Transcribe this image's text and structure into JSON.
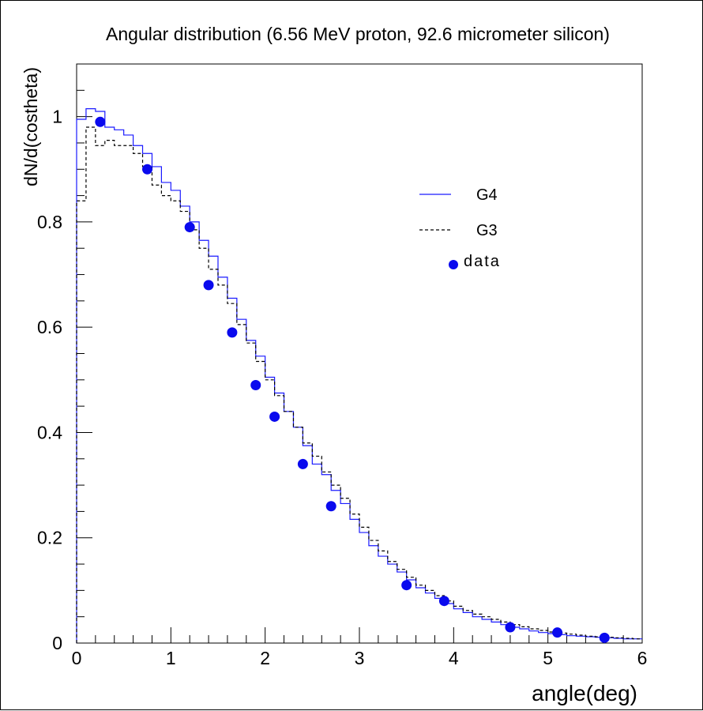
{
  "chart_data": {
    "type": "line",
    "title": "Angular distribution (6.56 MeV proton, 92.6 micrometer silicon)",
    "xlabel": "angle(deg)",
    "ylabel": "dN/d(costheta)",
    "xlim": [
      0,
      6
    ],
    "ylim": [
      0,
      1.1
    ],
    "x_ticks": [
      0,
      1,
      2,
      3,
      4,
      5,
      6
    ],
    "y_ticks": [
      0,
      0.2,
      0.4,
      0.6,
      0.8,
      1
    ],
    "x_tick_labels": [
      "0",
      "1",
      "2",
      "3",
      "4",
      "5",
      "6"
    ],
    "y_tick_labels": [
      "0",
      "0.2",
      "0.4",
      "0.6",
      "0.8",
      "1"
    ],
    "grid": false,
    "legend_position": "right",
    "series": [
      {
        "name": "G4",
        "style": "histogram-solid",
        "color": "#1a1aff",
        "bin_edges": [
          0,
          0.1,
          0.2,
          0.3,
          0.4,
          0.5,
          0.6,
          0.7,
          0.8,
          0.9,
          1.0,
          1.1,
          1.2,
          1.3,
          1.4,
          1.5,
          1.6,
          1.7,
          1.8,
          1.9,
          2.0,
          2.1,
          2.2,
          2.3,
          2.4,
          2.5,
          2.6,
          2.7,
          2.8,
          2.9,
          3.0,
          3.1,
          3.2,
          3.3,
          3.4,
          3.5,
          3.6,
          3.7,
          3.8,
          3.9,
          4.0,
          4.1,
          4.2,
          4.3,
          4.4,
          4.5,
          4.6,
          4.7,
          4.8,
          4.9,
          5.0,
          5.1,
          5.2,
          5.3,
          5.4,
          5.5,
          5.6,
          5.7,
          5.8,
          5.9,
          6.0
        ],
        "values": [
          0.995,
          1.015,
          1.01,
          0.98,
          0.975,
          0.965,
          0.945,
          0.93,
          0.905,
          0.875,
          0.86,
          0.83,
          0.8,
          0.765,
          0.735,
          0.695,
          0.655,
          0.615,
          0.575,
          0.545,
          0.505,
          0.475,
          0.44,
          0.41,
          0.375,
          0.34,
          0.32,
          0.29,
          0.265,
          0.235,
          0.21,
          0.185,
          0.165,
          0.15,
          0.135,
          0.12,
          0.105,
          0.095,
          0.085,
          0.075,
          0.065,
          0.058,
          0.05,
          0.045,
          0.04,
          0.035,
          0.03,
          0.027,
          0.023,
          0.02,
          0.018,
          0.016,
          0.014,
          0.013,
          0.012,
          0.011,
          0.01,
          0.009,
          0.008,
          0.008
        ]
      },
      {
        "name": "G3",
        "style": "histogram-dashed",
        "color": "#000000",
        "bin_edges": [
          0,
          0.1,
          0.2,
          0.3,
          0.4,
          0.5,
          0.6,
          0.7,
          0.8,
          0.9,
          1.0,
          1.1,
          1.2,
          1.3,
          1.4,
          1.5,
          1.6,
          1.7,
          1.8,
          1.9,
          2.0,
          2.1,
          2.2,
          2.3,
          2.4,
          2.5,
          2.6,
          2.7,
          2.8,
          2.9,
          3.0,
          3.1,
          3.2,
          3.3,
          3.4,
          3.5,
          3.6,
          3.7,
          3.8,
          3.9,
          4.0,
          4.1,
          4.2,
          4.3,
          4.4,
          4.5,
          4.6,
          4.7,
          4.8,
          4.9,
          5.0,
          5.1,
          5.2,
          5.3,
          5.4,
          5.5,
          5.6,
          5.7,
          5.8,
          5.9,
          6.0
        ],
        "values": [
          0.84,
          0.98,
          0.945,
          0.955,
          0.945,
          0.945,
          0.93,
          0.905,
          0.87,
          0.85,
          0.84,
          0.82,
          0.785,
          0.75,
          0.71,
          0.68,
          0.645,
          0.605,
          0.57,
          0.535,
          0.5,
          0.47,
          0.44,
          0.41,
          0.38,
          0.355,
          0.325,
          0.3,
          0.275,
          0.245,
          0.22,
          0.195,
          0.175,
          0.155,
          0.14,
          0.125,
          0.11,
          0.1,
          0.09,
          0.08,
          0.07,
          0.062,
          0.055,
          0.05,
          0.045,
          0.04,
          0.035,
          0.031,
          0.027,
          0.024,
          0.021,
          0.019,
          0.017,
          0.015,
          0.013,
          0.012,
          0.011,
          0.01,
          0.009,
          0.008
        ]
      },
      {
        "name": "data",
        "style": "markers",
        "color": "#0a0aee",
        "x": [
          0.25,
          0.75,
          1.2,
          1.4,
          1.65,
          1.9,
          2.1,
          2.4,
          2.7,
          3.5,
          3.9,
          4.6,
          5.1,
          5.6
        ],
        "y": [
          0.99,
          0.9,
          0.79,
          0.68,
          0.59,
          0.49,
          0.43,
          0.34,
          0.26,
          0.11,
          0.08,
          0.03,
          0.02,
          0.01
        ]
      }
    ]
  }
}
